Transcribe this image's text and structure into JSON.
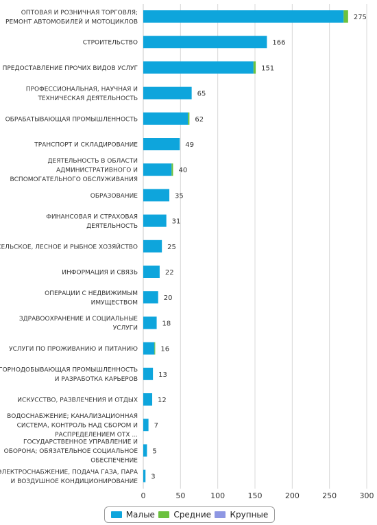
{
  "chart_data": {
    "type": "bar",
    "orientation": "horizontal",
    "stacked": true,
    "categories": [
      [
        "ОПТОВАЯ И РОЗНИЧНАЯ ТОРГОВЛЯ;",
        "РЕМОНТ АВТОМОБИЛЕЙ И МОТОЦИКЛОВ"
      ],
      [
        "СТРОИТЕЛЬСТВО"
      ],
      [
        "ПРЕДОСТАВЛЕНИЕ ПРОЧИХ ВИДОВ УСЛУГ"
      ],
      [
        "ПРОФЕССИОНАЛЬНАЯ, НАУЧНАЯ И",
        "ТЕХНИЧЕСКАЯ ДЕЯТЕЛЬНОСТЬ"
      ],
      [
        "ОБРАБАТЫВАЮЩАЯ ПРОМЫШЛЕННОСТЬ"
      ],
      [
        "ТРАНСПОРТ И СКЛАДИРОВАНИЕ"
      ],
      [
        "ДЕЯТЕЛЬНОСТЬ В ОБЛАСТИ",
        "АДМИНИСТРАТИВНОГО И",
        "ВСПОМОГАТЕЛЬНОГО ОБСЛУЖИВАНИЯ"
      ],
      [
        "ОБРАЗОВАНИЕ"
      ],
      [
        "ФИНАНСОВАЯ И СТРАХОВАЯ",
        "ДЕЯТЕЛЬНОСТЬ"
      ],
      [
        "СЕЛЬСКОЕ, ЛЕСНОЕ И РЫБНОЕ ХОЗЯЙСТВО"
      ],
      [
        "ИНФОРМАЦИЯ И СВЯЗЬ"
      ],
      [
        "ОПЕРАЦИИ С НЕДВИЖИМЫМ",
        "ИМУЩЕСТВОМ"
      ],
      [
        "ЗДРАВООХРАНЕНИЕ И СОЦИАЛЬНЫЕ",
        "УСЛУГИ"
      ],
      [
        "УСЛУГИ ПО ПРОЖИВАНИЮ И ПИТАНИЮ"
      ],
      [
        "ГОРНОДОБЫВАЮЩАЯ ПРОМЫШЛЕННОСТЬ",
        "И РАЗРАБОТКА КАРЬЕРОВ"
      ],
      [
        "ИСКУССТВО, РАЗВЛЕЧЕНИЯ И ОТДЫХ"
      ],
      [
        "ВОДОСНАБЖЕНИЕ; КАНАЛИЗАЦИОННАЯ",
        "СИСТЕМА, КОНТРОЛЬ НАД СБОРОМ И",
        "РАСПРЕДЕЛЕНИЕМ ОТХ ..."
      ],
      [
        "ГОСУДАРСТВЕННОЕ УПРАВЛЕНИЕ И",
        "ОБОРОНА; ОБЯЗАТЕЛЬНОЕ СОЦИАЛЬНОЕ",
        "ОБЕСПЕЧЕНИЕ"
      ],
      [
        "ЭЛЕКТРОСНАБЖЕНИЕ, ПОДАЧА ГАЗА, ПАРА",
        "И ВОЗДУШНОЕ КОНДИЦИОНИРОВАНИЕ"
      ]
    ],
    "series": [
      {
        "name": "Малые",
        "color": "#0ea5dc",
        "values": [
          269,
          166,
          148,
          65,
          60,
          49,
          38,
          35,
          31,
          25,
          22,
          20,
          18,
          15,
          13,
          12,
          7,
          5,
          3
        ]
      },
      {
        "name": "Средние",
        "color": "#6cc13f",
        "values": [
          6,
          0,
          3,
          0,
          2,
          0,
          2,
          0,
          0,
          0,
          0,
          0,
          0,
          1,
          0,
          0,
          0,
          0,
          0
        ]
      },
      {
        "name": "Крупные",
        "color": "#8e97e3",
        "values": [
          0,
          0,
          0,
          0,
          0,
          0,
          0,
          0,
          0,
          0,
          0,
          0,
          0,
          0,
          0,
          0,
          0,
          0,
          0
        ]
      }
    ],
    "totals": [
      275,
      166,
      151,
      65,
      62,
      49,
      40,
      35,
      31,
      25,
      22,
      20,
      18,
      16,
      13,
      12,
      7,
      5,
      3
    ],
    "xlim": [
      0,
      300
    ],
    "xticks": [
      0,
      50,
      100,
      150,
      200,
      250,
      300
    ],
    "grid": true,
    "legend_position": "bottom-center"
  }
}
